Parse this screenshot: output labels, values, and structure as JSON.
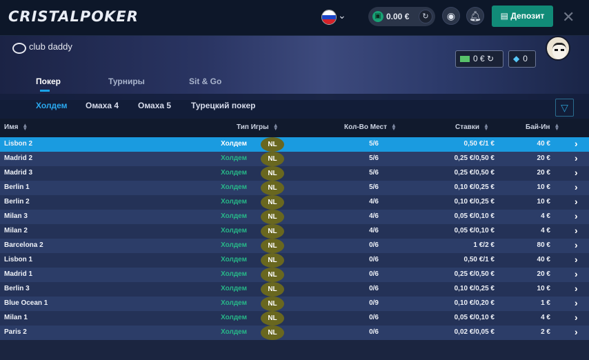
{
  "header": {
    "logo": "CRISTALPOKER",
    "balance": "0.00 €",
    "deposit_label": "Депозит",
    "close_glyph": "✕"
  },
  "club": {
    "logo_text": "club daddy",
    "cash_balance": "0 €",
    "gems": "0"
  },
  "main_tabs": [
    {
      "label": "Покер",
      "active": true
    },
    {
      "label": "Турниры",
      "active": false
    },
    {
      "label": "Sit & Go",
      "active": false
    }
  ],
  "sub_tabs": [
    {
      "label": "Холдем",
      "active": true
    },
    {
      "label": "Омаха 4",
      "active": false
    },
    {
      "label": "Омаха 5",
      "active": false
    },
    {
      "label": "Турецкий покер",
      "active": false
    }
  ],
  "table": {
    "columns": [
      "Имя",
      "Тип Игры",
      "Кол-Во Мест",
      "Ставки",
      "Бай-Ин"
    ],
    "rows": [
      {
        "name": "Lisbon 2",
        "type": "Холдем",
        "limit": "NL",
        "seats": "5/6",
        "stakes": "0,50 €/1 €",
        "buyin": "40 €",
        "selected": true
      },
      {
        "name": "Madrid 2",
        "type": "Холдем",
        "limit": "NL",
        "seats": "5/6",
        "stakes": "0,25 €/0,50 €",
        "buyin": "20 €"
      },
      {
        "name": "Madrid 3",
        "type": "Холдем",
        "limit": "NL",
        "seats": "5/6",
        "stakes": "0,25 €/0,50 €",
        "buyin": "20 €"
      },
      {
        "name": "Berlin 1",
        "type": "Холдем",
        "limit": "NL",
        "seats": "5/6",
        "stakes": "0,10 €/0,25 €",
        "buyin": "10 €"
      },
      {
        "name": "Berlin 2",
        "type": "Холдем",
        "limit": "NL",
        "seats": "4/6",
        "stakes": "0,10 €/0,25 €",
        "buyin": "10 €"
      },
      {
        "name": "Milan 3",
        "type": "Холдем",
        "limit": "NL",
        "seats": "4/6",
        "stakes": "0,05 €/0,10 €",
        "buyin": "4 €"
      },
      {
        "name": "Milan 2",
        "type": "Холдем",
        "limit": "NL",
        "seats": "4/6",
        "stakes": "0,05 €/0,10 €",
        "buyin": "4 €"
      },
      {
        "name": "Barcelona 2",
        "type": "Холдем",
        "limit": "NL",
        "seats": "0/6",
        "stakes": "1 €/2 €",
        "buyin": "80 €"
      },
      {
        "name": "Lisbon 1",
        "type": "Холдем",
        "limit": "NL",
        "seats": "0/6",
        "stakes": "0,50 €/1 €",
        "buyin": "40 €"
      },
      {
        "name": "Madrid 1",
        "type": "Холдем",
        "limit": "NL",
        "seats": "0/6",
        "stakes": "0,25 €/0,50 €",
        "buyin": "20 €"
      },
      {
        "name": "Berlin 3",
        "type": "Холдем",
        "limit": "NL",
        "seats": "0/6",
        "stakes": "0,10 €/0,25 €",
        "buyin": "10 €"
      },
      {
        "name": "Blue Ocean 1",
        "type": "Холдем",
        "limit": "NL",
        "seats": "0/9",
        "stakes": "0,10 €/0,20 €",
        "buyin": "1 €"
      },
      {
        "name": "Milan 1",
        "type": "Холдем",
        "limit": "NL",
        "seats": "0/6",
        "stakes": "0,05 €/0,10 €",
        "buyin": "4 €"
      },
      {
        "name": "Paris 2",
        "type": "Холдем",
        "limit": "NL",
        "seats": "0/6",
        "stakes": "0,02 €/0,05 €",
        "buyin": "2 €"
      }
    ]
  },
  "colors": {
    "accent_blue": "#1a9be0",
    "deposit_green": "#118b78",
    "game_type_green": "#27b788"
  },
  "icons": [
    "russian-flag-icon",
    "wallet-icon",
    "refresh-icon",
    "profile-icon",
    "bell-icon",
    "deposit-icon",
    "close-icon",
    "cash-icon",
    "diamond-icon",
    "filter-icon",
    "sort-icon",
    "chevron-right-icon"
  ]
}
